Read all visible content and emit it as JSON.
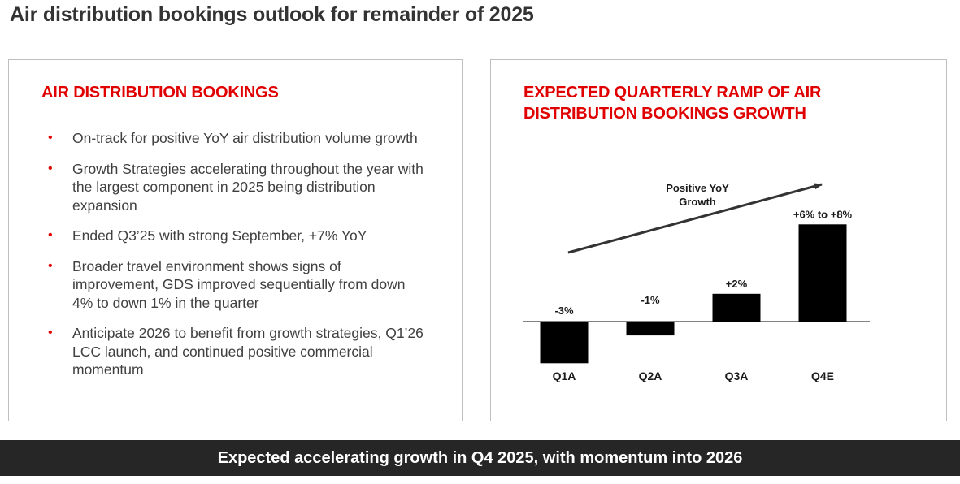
{
  "page": {
    "title": "Air distribution bookings outlook for remainder of 2025",
    "footer": "Expected accelerating growth in Q4 2025, with momentum into 2026"
  },
  "left_panel": {
    "heading": "AIR DISTRIBUTION BOOKINGS",
    "bullet_symbol": "•",
    "bullets": [
      "On-track for positive YoY air distribution volume growth",
      "Growth Strategies accelerating throughout the year with the largest component in 2025 being distribution expansion",
      "Ended Q3’25 with strong September, +7% YoY",
      "Broader travel environment shows signs of improvement, GDS improved sequentially from down 4% to down 1% in the quarter",
      "Anticipate 2026 to benefit from growth strategies, Q1’26 LCC launch, and continued positive commercial momentum"
    ]
  },
  "right_panel": {
    "heading": "EXPECTED QUARTERLY RAMP OF AIR DISTRIBUTION BOOKINGS GROWTH"
  },
  "colors": {
    "accent": "#e00000",
    "bar": "#000000",
    "footer_bg": "#262626"
  },
  "chart_data": {
    "type": "bar",
    "title": "EXPECTED QUARTERLY RAMP OF AIR DISTRIBUTION BOOKINGS GROWTH",
    "categories": [
      "Q1A",
      "Q2A",
      "Q3A",
      "Q4E"
    ],
    "values": [
      -3,
      -1,
      2,
      7
    ],
    "data_labels": [
      "-3%",
      "-1%",
      "+2%",
      "+6% to +8%"
    ],
    "range_Q4E": [
      6,
      8
    ],
    "annotation": "Positive YoY Growth",
    "annotation_lines": [
      "Positive YoY",
      "Growth"
    ],
    "xlabel": "",
    "ylabel": "",
    "grid": false,
    "legend": "none"
  }
}
